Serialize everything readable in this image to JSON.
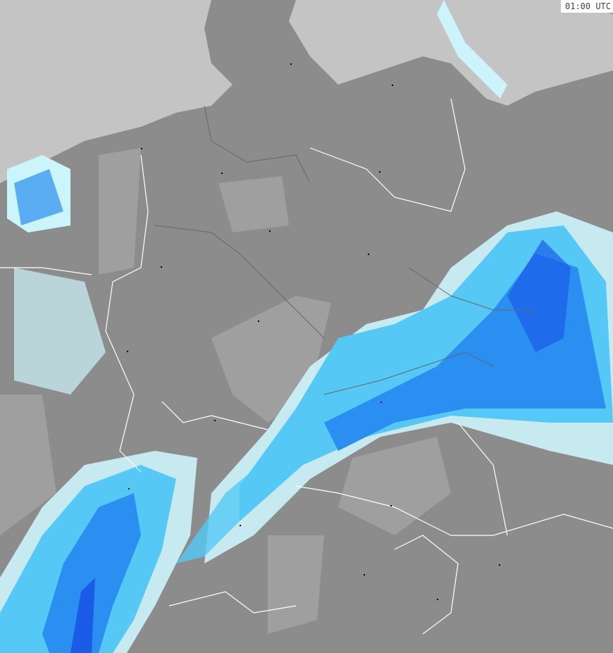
{
  "timestamp": "01:00 UTC",
  "colors": {
    "land": "#8c8c8c",
    "sea": "#c4c4c4",
    "light_precip": "#ccf4fb",
    "medium_precip": "#55c8f5",
    "heavy_precip": "#2a8ff0",
    "intense_precip": "#1a5ce8",
    "borders": "#ffffff"
  }
}
